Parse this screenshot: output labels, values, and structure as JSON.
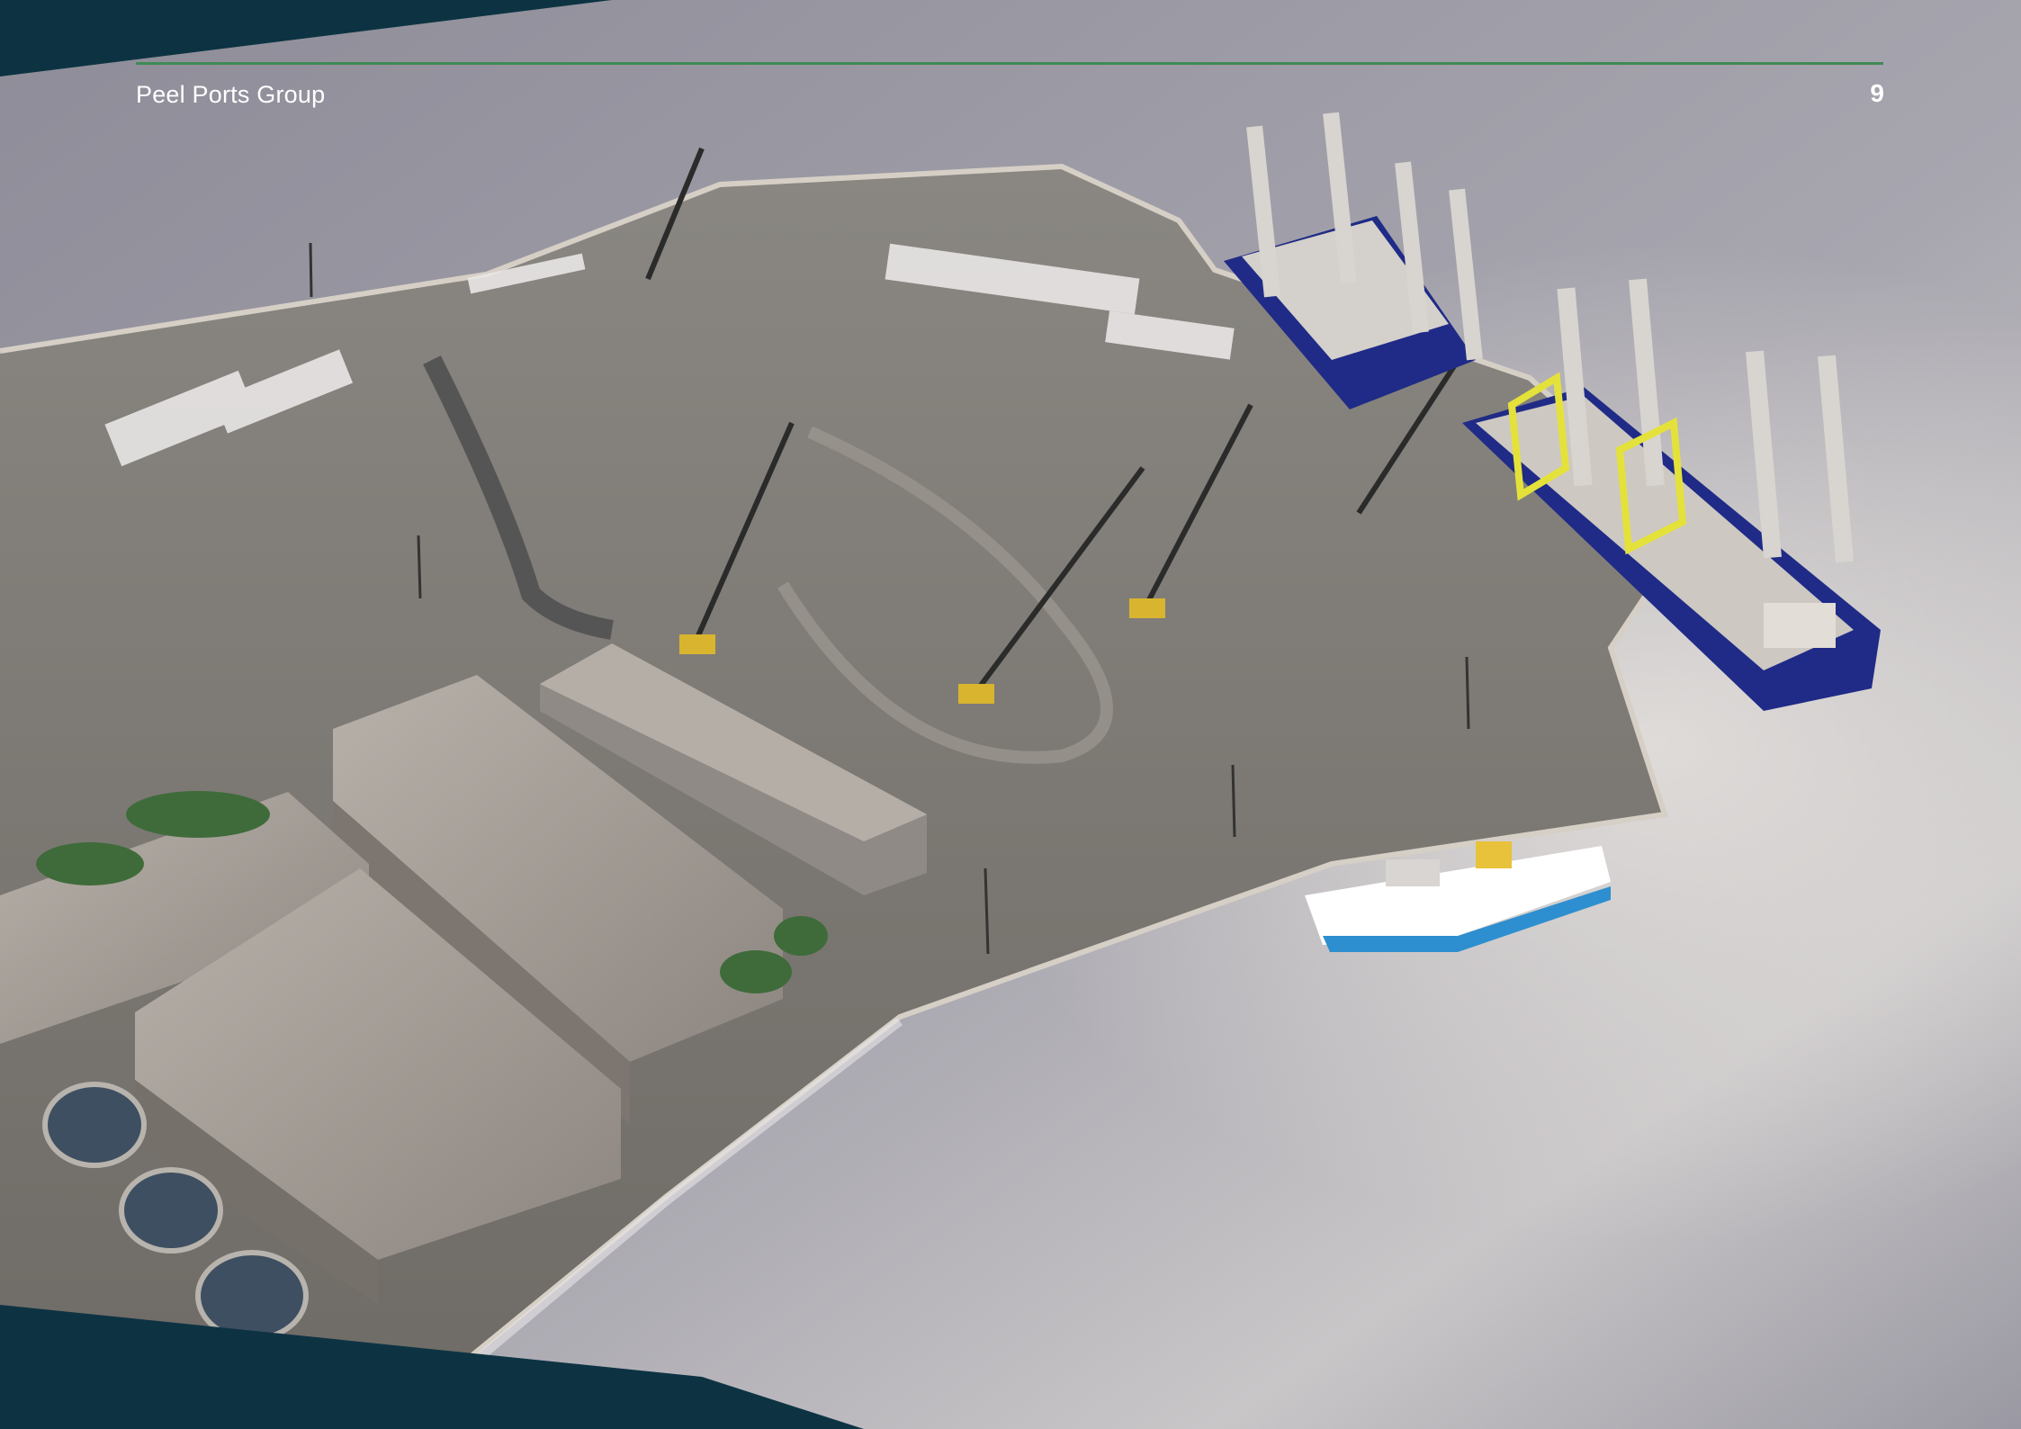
{
  "header": {
    "brand": "Peel Ports Group",
    "page_number": "9"
  },
  "colors": {
    "navy_band": "#0d3343",
    "header_rule": "#3f8a55",
    "water": "#9c9aa4",
    "quay": "#7f7b76",
    "tower": "#d8cbb8",
    "tower_top": "#e8c23a",
    "ship_hull": "#1f2b86"
  },
  "image": {
    "subject": "port-render",
    "icon": "offshore-wind-port-illustration"
  }
}
